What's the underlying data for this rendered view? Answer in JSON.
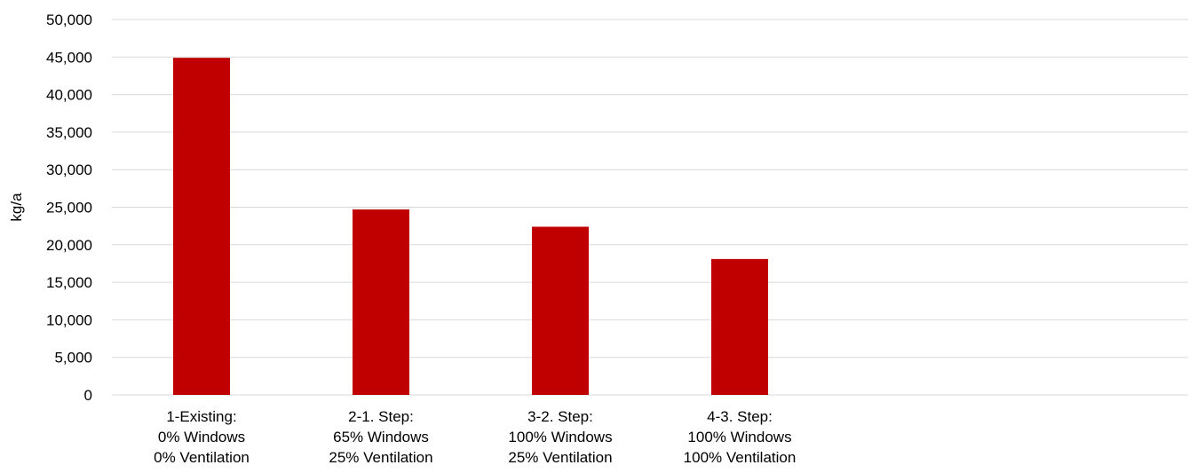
{
  "chart_data": {
    "type": "bar",
    "title": "",
    "xlabel": "",
    "ylabel": "kg/a",
    "ylim": [
      0,
      50000
    ],
    "ytick_step": 5000,
    "yticks": [
      "0",
      "5,000",
      "10,000",
      "15,000",
      "20,000",
      "25,000",
      "30,000",
      "35,000",
      "40,000",
      "45,000",
      "50,000"
    ],
    "grid": true,
    "legend": "none",
    "bar_color": "#c00000",
    "category_slots": 6,
    "categories": [
      [
        "1-Existing:",
        "0% Windows",
        "0% Ventilation"
      ],
      [
        "2-1. Step:",
        "65% Windows",
        "25% Ventilation"
      ],
      [
        "3-2. Step:",
        "100% Windows",
        "25% Ventilation"
      ],
      [
        "4-3. Step:",
        "100% Windows",
        "100% Ventilation"
      ]
    ],
    "values": [
      44900,
      24700,
      22400,
      18100
    ]
  }
}
